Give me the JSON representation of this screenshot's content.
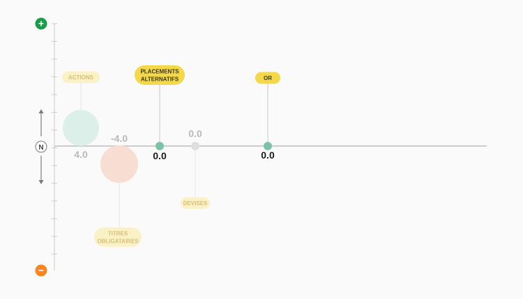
{
  "chart_data": {
    "type": "bubble",
    "title": "",
    "xlabel": "",
    "ylabel": "",
    "axis": {
      "top_symbol": "+",
      "bottom_symbol": "−",
      "neutral_label": "N",
      "top_color": "#1a9b4a",
      "bottom_color": "#f5871f"
    },
    "series": [
      {
        "name": "ACTIONS",
        "value": 4.0,
        "value_label": "4.0",
        "faded": true,
        "bubble_color": "#dcefe9",
        "tag_color": "#fbf1c6",
        "label_color": "#d6bf7a"
      },
      {
        "name": "TITRES OBLIGATAIRES",
        "value": -4.0,
        "value_label": "-4.0",
        "faded": true,
        "bubble_color": "#f8ddd3",
        "tag_color": "#fbf1c6",
        "label_color": "#d6bf7a"
      },
      {
        "name": "PLACEMENTS ALTERNATIFS",
        "value": 0.0,
        "value_label": "0.0",
        "faded": false,
        "bubble_color": "#7cc3a6",
        "tag_color": "#f4d84a",
        "label_color": "#3a3a1a"
      },
      {
        "name": "DEVISES",
        "value": 0.0,
        "value_label": "0.0",
        "faded": true,
        "bubble_color": "#dedede",
        "tag_color": "#fbf1c6",
        "label_color": "#d6bf7a"
      },
      {
        "name": "OR",
        "value": 0.0,
        "value_label": "0.0",
        "faded": false,
        "bubble_color": "#7cc3a6",
        "tag_color": "#f4d84a",
        "label_color": "#3a3a1a"
      }
    ]
  }
}
